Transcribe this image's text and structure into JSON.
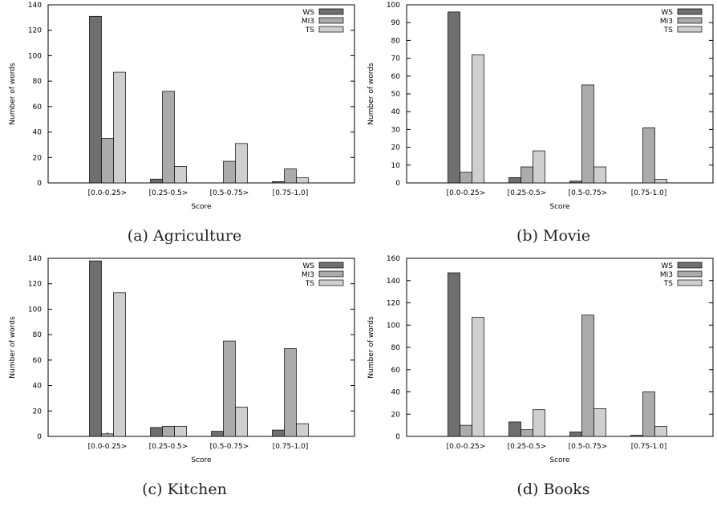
{
  "colors": {
    "WS": "#6f6f6f",
    "MI3": "#ababab",
    "TS": "#cfcfcf",
    "axis": "#000000",
    "text": "#000000"
  },
  "chart_data": [
    {
      "type": "bar",
      "caption": "(a) Agriculture",
      "categories": [
        "[0.0-0.25>",
        "[0.25-0.5>",
        "[0.5-0.75>",
        "[0.75-1.0]"
      ],
      "series": [
        {
          "name": "WS",
          "values": [
            131,
            3,
            0,
            1
          ]
        },
        {
          "name": "MI3",
          "values": [
            35,
            72,
            17,
            11
          ]
        },
        {
          "name": "TS",
          "values": [
            87,
            13,
            31,
            4
          ]
        }
      ],
      "xlabel": "Score",
      "ylabel": "Number of words",
      "ylim": [
        0,
        140
      ],
      "yticks": [
        "0",
        "20",
        "40",
        "60",
        "80",
        "100",
        "120",
        "140"
      ],
      "legend": "top-right",
      "grid": false
    },
    {
      "type": "bar",
      "caption": "(b) Movie",
      "categories": [
        "[0.0-0.25>",
        "[0.25-0.5>",
        "[0.5-0.75>",
        "[0.75-1.0]"
      ],
      "series": [
        {
          "name": "WS",
          "values": [
            96,
            3,
            1,
            0
          ]
        },
        {
          "name": "MI3",
          "values": [
            6,
            9,
            55,
            31
          ]
        },
        {
          "name": "TS",
          "values": [
            72,
            18,
            9,
            2
          ]
        }
      ],
      "xlabel": "Score",
      "ylabel": "Number of words",
      "ylim": [
        0,
        100
      ],
      "yticks": [
        "0",
        "10",
        "20",
        "30",
        "40",
        "50",
        "60",
        "70",
        "80",
        "90",
        "100"
      ],
      "legend": "top-right",
      "grid": false
    },
    {
      "type": "bar",
      "caption": "(c) Kitchen",
      "categories": [
        "[0.0-0.25>",
        "[0.25-0.5>",
        "[0.5-0.75>",
        "[0.75-1.0]"
      ],
      "series": [
        {
          "name": "WS",
          "values": [
            138,
            7,
            4,
            5
          ]
        },
        {
          "name": "MI3",
          "values": [
            2,
            8,
            75,
            69
          ]
        },
        {
          "name": "TS",
          "values": [
            113,
            8,
            23,
            10
          ]
        }
      ],
      "xlabel": "Score",
      "ylabel": "Number of words",
      "ylim": [
        0,
        140
      ],
      "yticks": [
        "0",
        "20",
        "40",
        "60",
        "80",
        "100",
        "120",
        "140"
      ],
      "legend": "top-right",
      "grid": false
    },
    {
      "type": "bar",
      "caption": "(d) Books",
      "categories": [
        "[0.0-0.25>",
        "[0.25-0.5>",
        "[0.5-0.75>",
        "[0.75-1.0]"
      ],
      "series": [
        {
          "name": "WS",
          "values": [
            147,
            13,
            4,
            1
          ]
        },
        {
          "name": "MI3",
          "values": [
            10,
            6,
            109,
            40
          ]
        },
        {
          "name": "TS",
          "values": [
            107,
            24,
            25,
            9
          ]
        }
      ],
      "xlabel": "Score",
      "ylabel": "Number of words",
      "ylim": [
        0,
        160
      ],
      "yticks": [
        "0",
        "20",
        "40",
        "60",
        "80",
        "100",
        "120",
        "140",
        "160"
      ],
      "legend": "top-right",
      "grid": false
    }
  ]
}
